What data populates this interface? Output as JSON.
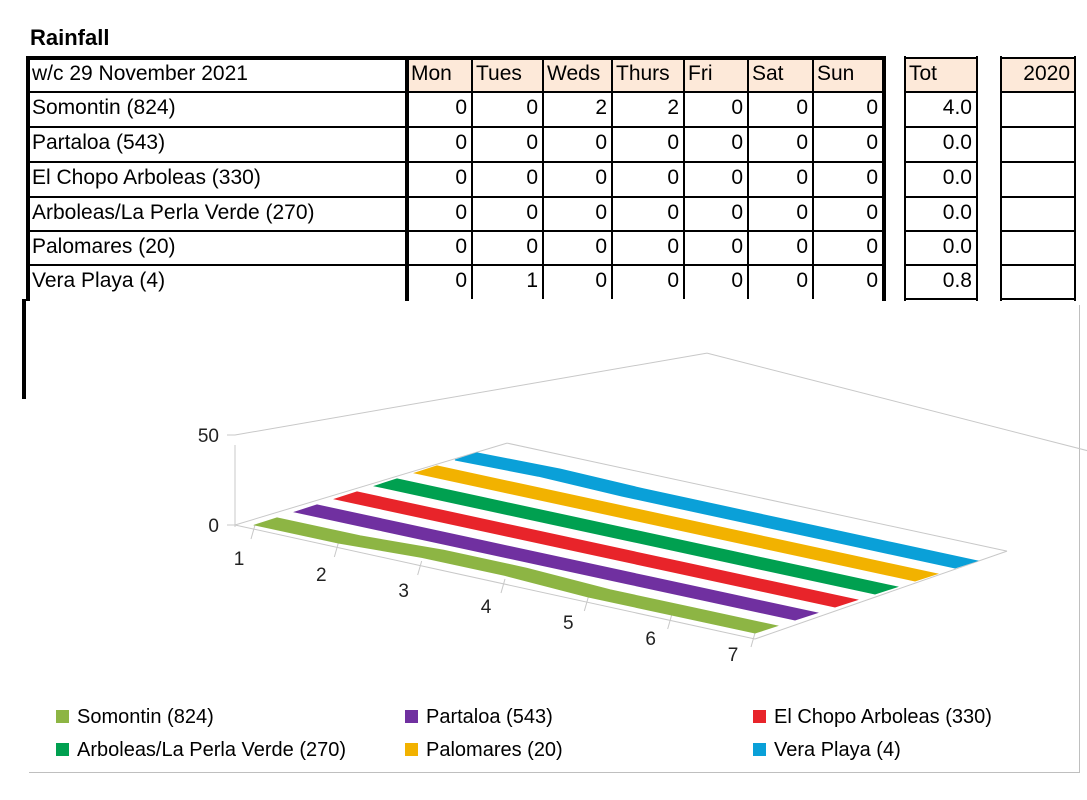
{
  "title": "Rainfall",
  "table": {
    "week_label": "w/c 29 November 2021",
    "days": [
      "Mon",
      "Tues",
      "Weds",
      "Thurs",
      "Fri",
      "Sat",
      "Sun"
    ],
    "total_label": "Tot",
    "prev_year_label": "2020",
    "rows": [
      {
        "name": "Somontin (824)",
        "values": [
          "0",
          "0",
          "2",
          "2",
          "0",
          "0",
          "0"
        ],
        "total": "4.0"
      },
      {
        "name": "Partaloa (543)",
        "values": [
          "0",
          "0",
          "0",
          "0",
          "0",
          "0",
          "0"
        ],
        "total": "0.0"
      },
      {
        "name": "El Chopo Arboleas (330)",
        "values": [
          "0",
          "0",
          "0",
          "0",
          "0",
          "0",
          "0"
        ],
        "total": "0.0"
      },
      {
        "name": "Arboleas/La Perla Verde (270)",
        "values": [
          "0",
          "0",
          "0",
          "0",
          "0",
          "0",
          "0"
        ],
        "total": "0.0"
      },
      {
        "name": "Palomares (20)",
        "values": [
          "0",
          "0",
          "0",
          "0",
          "0",
          "0",
          "0"
        ],
        "total": "0.0"
      },
      {
        "name": "Vera Playa (4)",
        "values": [
          "0",
          "1",
          "0",
          "0",
          "0",
          "0",
          "0"
        ],
        "total": "0.8"
      }
    ]
  },
  "chart_data": {
    "type": "area",
    "x": [
      1,
      2,
      3,
      4,
      5,
      6,
      7
    ],
    "x_tick_labels": [
      "1",
      "2",
      "3",
      "4",
      "5",
      "6",
      "7"
    ],
    "y_tick_labels": [
      "0",
      "50"
    ],
    "ylim": [
      0,
      50
    ],
    "grid": true,
    "legend": "bottom",
    "series": [
      {
        "name": "Somontin (824)",
        "color": "#8db544",
        "values": [
          0,
          0,
          2,
          2,
          0,
          0,
          0
        ]
      },
      {
        "name": "Partaloa (543)",
        "color": "#7030a0",
        "values": [
          0,
          0,
          0,
          0,
          0,
          0,
          0
        ]
      },
      {
        "name": "El Chopo Arboleas (330)",
        "color": "#e8242a",
        "values": [
          0,
          0,
          0,
          0,
          0,
          0,
          0
        ]
      },
      {
        "name": "Arboleas/La Perla Verde (270)",
        "color": "#00a050",
        "values": [
          0,
          0,
          0,
          0,
          0,
          0,
          0
        ]
      },
      {
        "name": "Palomares (20)",
        "color": "#f2b200",
        "values": [
          0,
          0,
          0,
          0,
          0,
          0,
          0
        ]
      },
      {
        "name": "Vera Playa (4)",
        "color": "#0aa0d8",
        "values": [
          0,
          1,
          0,
          0,
          0,
          0,
          0
        ]
      }
    ]
  }
}
